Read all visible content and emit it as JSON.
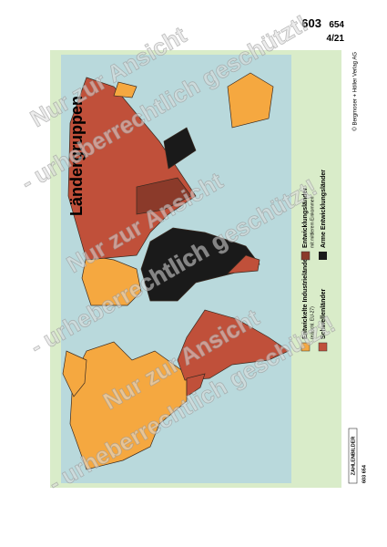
{
  "header": {
    "number": "603",
    "subnumber": "654",
    "sheet": "4/21"
  },
  "title": "Ländergruppen",
  "legend": [
    {
      "label": "Entwickelte Industrieländer",
      "note": "(einschl. EU-27)"
    },
    {
      "label": "Schwellenländer"
    },
    {
      "label": "Entwicklungsländer",
      "note": "mit mittlerem Einkommen"
    },
    {
      "label": "Arme Entwicklungsländer"
    }
  ],
  "copyright": "© Bergmoser + Höller Verlag AG",
  "footer": {
    "brand": "ZAHLENBILDER",
    "number": "603 654"
  },
  "watermark": [
    "Nur zur Ansicht",
    "- urheberrechtlich geschützt!"
  ]
}
